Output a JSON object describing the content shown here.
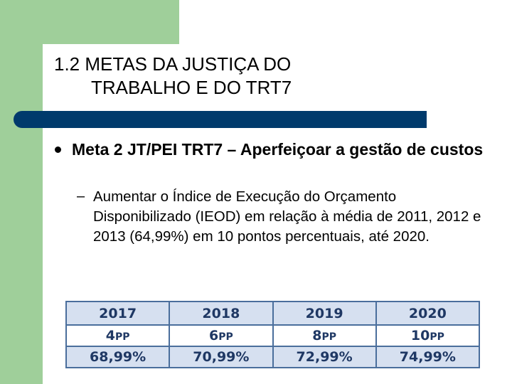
{
  "slide": {
    "title_line1": "1.2 METAS DA JUSTIÇA DO",
    "title_line2": "TRABALHO E DO TRT7",
    "bullet_main": "Meta 2 JT/PEI TRT7 – Aperfeiçoar a gestão de custos",
    "sub_dash": "–",
    "bullet_sub": "Aumentar o Índice de Execução do Orçamento Disponibilizado (IEOD) em relação à média de 2011, 2012 e 2013 (64,99%) em 10 pontos percentuais, até 2020."
  },
  "table": {
    "years": [
      "2017",
      "2018",
      "2019",
      "2020"
    ],
    "pp_values": [
      "4",
      "6",
      "8",
      "10"
    ],
    "pp_unit": "PP",
    "percentages": [
      "68,99%",
      "70,99%",
      "72,99%",
      "74,99%"
    ]
  },
  "colors": {
    "green": "#9fcf9a",
    "blue_bar": "#003a6c",
    "table_text": "#1f3864",
    "table_fill": "#d6e0f0"
  }
}
